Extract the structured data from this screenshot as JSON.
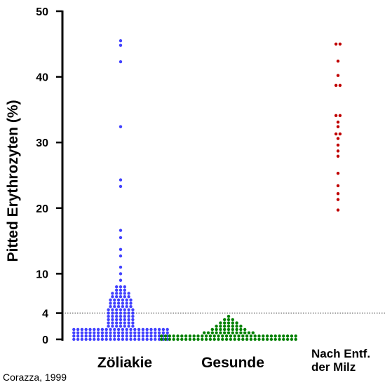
{
  "chart_data": {
    "type": "scatter",
    "ylabel": "Pitted Erythrozyten (%)",
    "ylim": [
      0,
      50
    ],
    "yticks": [
      0,
      4,
      10,
      20,
      30,
      40,
      50
    ],
    "reference_line": {
      "value": 4,
      "style": "dotted"
    },
    "source": "Corazza, 1999",
    "categories": [
      {
        "label": "Zöliakie",
        "label_lines": [
          "Zöliakie"
        ],
        "color": "#4040ff",
        "values": [
          0,
          0,
          0,
          0,
          0,
          0,
          0,
          0,
          0,
          0,
          0,
          0,
          0,
          0,
          0,
          0,
          0,
          0,
          0,
          0,
          0,
          0,
          0,
          0,
          0.5,
          0.5,
          0.5,
          0.5,
          0.5,
          0.5,
          0.5,
          0.5,
          0.5,
          0.5,
          0.5,
          0.5,
          0.5,
          0.5,
          0.5,
          0.5,
          0.5,
          0.5,
          0.5,
          0.5,
          0.5,
          0.5,
          0.5,
          0.5,
          1,
          1,
          1,
          1,
          1,
          1,
          1,
          1,
          1,
          1,
          1,
          1,
          1,
          1,
          1,
          1,
          1,
          1,
          1,
          1,
          1,
          1,
          1,
          1,
          1.5,
          1.5,
          1.5,
          1.5,
          1.5,
          1.5,
          1.5,
          1.5,
          1.5,
          1.5,
          1.5,
          1.5,
          1.5,
          1.5,
          1.5,
          1.5,
          1.5,
          1.5,
          1.5,
          1.5,
          1.5,
          1.5,
          1.5,
          1.5,
          2,
          2,
          2,
          2,
          2,
          2,
          2,
          2.5,
          2.5,
          2.5,
          2.5,
          2.5,
          2.5,
          2.5,
          3,
          3,
          3,
          3,
          3,
          3,
          3,
          3.5,
          3.5,
          3.5,
          3.5,
          3.5,
          3.5,
          3.5,
          4,
          4,
          4,
          4,
          4,
          4,
          4,
          4.5,
          4.5,
          4.5,
          4.5,
          4.5,
          4.5,
          4.5,
          5,
          5,
          5,
          5,
          5,
          5,
          5.5,
          5.5,
          5.5,
          5.5,
          5.5,
          5.5,
          6,
          6,
          6,
          6,
          6,
          6,
          6.5,
          6.5,
          6.5,
          6.5,
          6.5,
          7,
          7,
          7,
          7,
          7,
          7.5,
          7.5,
          7.5,
          8,
          8,
          8,
          9,
          10,
          11,
          12.7,
          13.7,
          15.5,
          16.6,
          23.3,
          24.3,
          32.4,
          42.3,
          44.8,
          45.5
        ]
      },
      {
        "label": "Gesunde",
        "label_lines": [
          "Gesunde"
        ],
        "color": "#008000",
        "values": [
          0,
          0,
          0,
          0,
          0,
          0,
          0,
          0,
          0,
          0,
          0,
          0,
          0,
          0,
          0,
          0,
          0,
          0,
          0,
          0,
          0,
          0,
          0,
          0,
          0,
          0,
          0,
          0,
          0,
          0,
          0,
          0,
          0,
          0,
          0.5,
          0.5,
          0.5,
          0.5,
          0.5,
          0.5,
          0.5,
          0.5,
          0.5,
          0.5,
          0.5,
          0.5,
          0.5,
          0.5,
          0.5,
          0.5,
          0.5,
          0.5,
          0.5,
          0.5,
          0.5,
          0.5,
          0.5,
          0.5,
          0.5,
          0.5,
          0.5,
          0.5,
          0.5,
          0.5,
          0.5,
          0.5,
          0.5,
          0.5,
          1,
          1,
          1,
          1,
          1,
          1,
          1,
          1,
          1,
          1,
          1,
          1,
          1,
          1.5,
          1.5,
          1.5,
          1.5,
          1.5,
          1.5,
          1.5,
          1.5,
          1.5,
          2,
          2,
          2,
          2,
          2,
          2,
          2,
          2.5,
          2.5,
          2.5,
          2.5,
          2.5,
          3,
          3,
          3,
          3.5
        ]
      },
      {
        "label": "Nach Entf. der Milz",
        "label_lines": [
          "Nach Entf.",
          "der Milz"
        ],
        "color": "#c00000",
        "values": [
          19.7,
          21.3,
          22.2,
          23.4,
          25.3,
          27.9,
          28.7,
          29.6,
          30.6,
          31.3,
          31.3,
          32.4,
          33.1,
          34.1,
          34.1,
          38.7,
          38.7,
          40.2,
          42.4,
          45,
          45
        ]
      }
    ]
  }
}
